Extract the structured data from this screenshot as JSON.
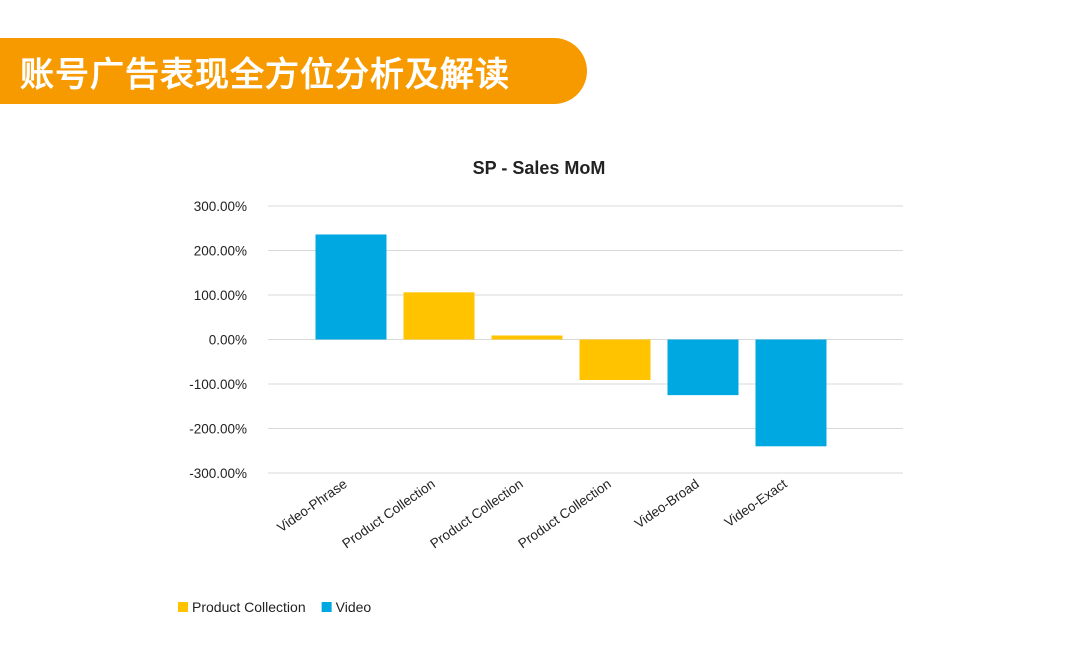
{
  "header": {
    "title": "账号广告表现全方位分析及解读"
  },
  "colors": {
    "banner": "#f79a00",
    "product_collection": "#ffc300",
    "video": "#00a8e1",
    "grid": "#d9d9d9"
  },
  "chart_data": {
    "type": "bar",
    "title": "SP - Sales MoM",
    "xlabel": "",
    "ylabel": "",
    "ylim": [
      -300,
      300
    ],
    "yticks": [
      300,
      200,
      100,
      0,
      -100,
      -200,
      -300
    ],
    "ytick_labels": [
      "300.00%",
      "200.00%",
      "100.00%",
      "0.00%",
      "-100.00%",
      "-200.00%",
      "-300.00%"
    ],
    "categories": [
      "Video-Phrase",
      "Product Collection",
      "Product Collection",
      "Product Collection",
      "Video-Broad",
      "Video-Exact"
    ],
    "values": [
      236,
      106,
      9,
      -91,
      -125,
      -240
    ],
    "bar_series": [
      "Video",
      "Product Collection",
      "Product Collection",
      "Product Collection",
      "Video",
      "Video"
    ],
    "legend": [
      {
        "name": "Product Collection",
        "color_key": "product_collection"
      },
      {
        "name": "Video",
        "color_key": "video"
      }
    ],
    "legend_position": "bottom-left"
  }
}
